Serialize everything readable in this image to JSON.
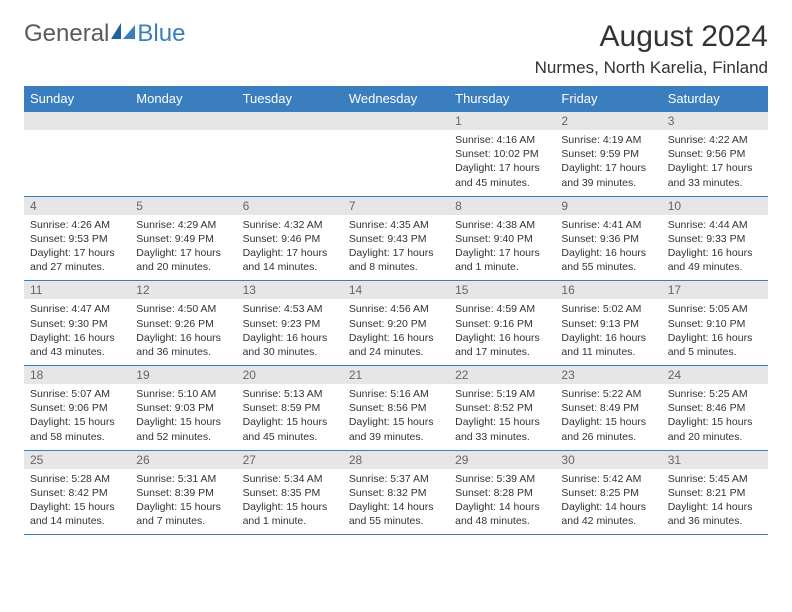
{
  "brand": {
    "part1": "General",
    "part2": "Blue"
  },
  "title": "August 2024",
  "location": "Nurmes, North Karelia, Finland",
  "colors": {
    "header_bg": "#3a7ebf",
    "header_text": "#ffffff",
    "daynum_bg": "#e6e6e6",
    "daynum_text": "#666666",
    "body_text": "#333333",
    "logo_gray": "#5a5a5a",
    "logo_blue": "#3a7ebf",
    "border": "#3a7ebf"
  },
  "day_headers": [
    "Sunday",
    "Monday",
    "Tuesday",
    "Wednesday",
    "Thursday",
    "Friday",
    "Saturday"
  ],
  "weeks": [
    [
      {
        "num": "",
        "sunrise": "",
        "sunset": "",
        "daylight": ""
      },
      {
        "num": "",
        "sunrise": "",
        "sunset": "",
        "daylight": ""
      },
      {
        "num": "",
        "sunrise": "",
        "sunset": "",
        "daylight": ""
      },
      {
        "num": "",
        "sunrise": "",
        "sunset": "",
        "daylight": ""
      },
      {
        "num": "1",
        "sunrise": "Sunrise: 4:16 AM",
        "sunset": "Sunset: 10:02 PM",
        "daylight": "Daylight: 17 hours and 45 minutes."
      },
      {
        "num": "2",
        "sunrise": "Sunrise: 4:19 AM",
        "sunset": "Sunset: 9:59 PM",
        "daylight": "Daylight: 17 hours and 39 minutes."
      },
      {
        "num": "3",
        "sunrise": "Sunrise: 4:22 AM",
        "sunset": "Sunset: 9:56 PM",
        "daylight": "Daylight: 17 hours and 33 minutes."
      }
    ],
    [
      {
        "num": "4",
        "sunrise": "Sunrise: 4:26 AM",
        "sunset": "Sunset: 9:53 PM",
        "daylight": "Daylight: 17 hours and 27 minutes."
      },
      {
        "num": "5",
        "sunrise": "Sunrise: 4:29 AM",
        "sunset": "Sunset: 9:49 PM",
        "daylight": "Daylight: 17 hours and 20 minutes."
      },
      {
        "num": "6",
        "sunrise": "Sunrise: 4:32 AM",
        "sunset": "Sunset: 9:46 PM",
        "daylight": "Daylight: 17 hours and 14 minutes."
      },
      {
        "num": "7",
        "sunrise": "Sunrise: 4:35 AM",
        "sunset": "Sunset: 9:43 PM",
        "daylight": "Daylight: 17 hours and 8 minutes."
      },
      {
        "num": "8",
        "sunrise": "Sunrise: 4:38 AM",
        "sunset": "Sunset: 9:40 PM",
        "daylight": "Daylight: 17 hours and 1 minute."
      },
      {
        "num": "9",
        "sunrise": "Sunrise: 4:41 AM",
        "sunset": "Sunset: 9:36 PM",
        "daylight": "Daylight: 16 hours and 55 minutes."
      },
      {
        "num": "10",
        "sunrise": "Sunrise: 4:44 AM",
        "sunset": "Sunset: 9:33 PM",
        "daylight": "Daylight: 16 hours and 49 minutes."
      }
    ],
    [
      {
        "num": "11",
        "sunrise": "Sunrise: 4:47 AM",
        "sunset": "Sunset: 9:30 PM",
        "daylight": "Daylight: 16 hours and 43 minutes."
      },
      {
        "num": "12",
        "sunrise": "Sunrise: 4:50 AM",
        "sunset": "Sunset: 9:26 PM",
        "daylight": "Daylight: 16 hours and 36 minutes."
      },
      {
        "num": "13",
        "sunrise": "Sunrise: 4:53 AM",
        "sunset": "Sunset: 9:23 PM",
        "daylight": "Daylight: 16 hours and 30 minutes."
      },
      {
        "num": "14",
        "sunrise": "Sunrise: 4:56 AM",
        "sunset": "Sunset: 9:20 PM",
        "daylight": "Daylight: 16 hours and 24 minutes."
      },
      {
        "num": "15",
        "sunrise": "Sunrise: 4:59 AM",
        "sunset": "Sunset: 9:16 PM",
        "daylight": "Daylight: 16 hours and 17 minutes."
      },
      {
        "num": "16",
        "sunrise": "Sunrise: 5:02 AM",
        "sunset": "Sunset: 9:13 PM",
        "daylight": "Daylight: 16 hours and 11 minutes."
      },
      {
        "num": "17",
        "sunrise": "Sunrise: 5:05 AM",
        "sunset": "Sunset: 9:10 PM",
        "daylight": "Daylight: 16 hours and 5 minutes."
      }
    ],
    [
      {
        "num": "18",
        "sunrise": "Sunrise: 5:07 AM",
        "sunset": "Sunset: 9:06 PM",
        "daylight": "Daylight: 15 hours and 58 minutes."
      },
      {
        "num": "19",
        "sunrise": "Sunrise: 5:10 AM",
        "sunset": "Sunset: 9:03 PM",
        "daylight": "Daylight: 15 hours and 52 minutes."
      },
      {
        "num": "20",
        "sunrise": "Sunrise: 5:13 AM",
        "sunset": "Sunset: 8:59 PM",
        "daylight": "Daylight: 15 hours and 45 minutes."
      },
      {
        "num": "21",
        "sunrise": "Sunrise: 5:16 AM",
        "sunset": "Sunset: 8:56 PM",
        "daylight": "Daylight: 15 hours and 39 minutes."
      },
      {
        "num": "22",
        "sunrise": "Sunrise: 5:19 AM",
        "sunset": "Sunset: 8:52 PM",
        "daylight": "Daylight: 15 hours and 33 minutes."
      },
      {
        "num": "23",
        "sunrise": "Sunrise: 5:22 AM",
        "sunset": "Sunset: 8:49 PM",
        "daylight": "Daylight: 15 hours and 26 minutes."
      },
      {
        "num": "24",
        "sunrise": "Sunrise: 5:25 AM",
        "sunset": "Sunset: 8:46 PM",
        "daylight": "Daylight: 15 hours and 20 minutes."
      }
    ],
    [
      {
        "num": "25",
        "sunrise": "Sunrise: 5:28 AM",
        "sunset": "Sunset: 8:42 PM",
        "daylight": "Daylight: 15 hours and 14 minutes."
      },
      {
        "num": "26",
        "sunrise": "Sunrise: 5:31 AM",
        "sunset": "Sunset: 8:39 PM",
        "daylight": "Daylight: 15 hours and 7 minutes."
      },
      {
        "num": "27",
        "sunrise": "Sunrise: 5:34 AM",
        "sunset": "Sunset: 8:35 PM",
        "daylight": "Daylight: 15 hours and 1 minute."
      },
      {
        "num": "28",
        "sunrise": "Sunrise: 5:37 AM",
        "sunset": "Sunset: 8:32 PM",
        "daylight": "Daylight: 14 hours and 55 minutes."
      },
      {
        "num": "29",
        "sunrise": "Sunrise: 5:39 AM",
        "sunset": "Sunset: 8:28 PM",
        "daylight": "Daylight: 14 hours and 48 minutes."
      },
      {
        "num": "30",
        "sunrise": "Sunrise: 5:42 AM",
        "sunset": "Sunset: 8:25 PM",
        "daylight": "Daylight: 14 hours and 42 minutes."
      },
      {
        "num": "31",
        "sunrise": "Sunrise: 5:45 AM",
        "sunset": "Sunset: 8:21 PM",
        "daylight": "Daylight: 14 hours and 36 minutes."
      }
    ]
  ]
}
